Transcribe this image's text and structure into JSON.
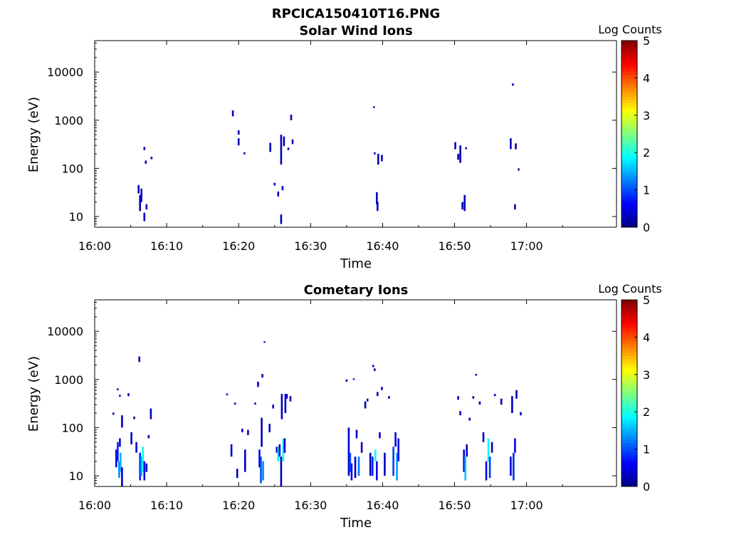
{
  "figure": {
    "title": "RPCICA150410T16.PNG"
  },
  "chart_data": [
    {
      "type": "heatmap",
      "title": "Solar Wind Ions",
      "xlabel": "Time",
      "ylabel": "Energy (eV)",
      "x_unit": "minutes after 16:00",
      "xlim": [
        0,
        72.5
      ],
      "xticks": [
        0,
        10,
        20,
        30,
        40,
        50,
        60
      ],
      "xtick_labels": [
        "16:00",
        "16:10",
        "16:20",
        "16:30",
        "16:40",
        "16:50",
        "17:00"
      ],
      "y_scale": "log",
      "ylim": [
        6,
        45000
      ],
      "yticks": [
        10,
        100,
        1000,
        10000
      ],
      "ytick_labels": [
        "10",
        "100",
        "1000",
        "10000"
      ],
      "colorbar": {
        "label": "Log Counts",
        "min": 0,
        "max": 5,
        "ticks": [
          "0",
          "1",
          "2",
          "3",
          "4",
          "5"
        ],
        "colormap": "jet"
      },
      "cells_format": [
        "time_min",
        "energy_low_eV",
        "energy_high_eV",
        "log_counts"
      ],
      "cells": [
        [
          6.1,
          30,
          45,
          0.3
        ],
        [
          6.3,
          13,
          28,
          0.3
        ],
        [
          6.5,
          20,
          38,
          0.3
        ],
        [
          6.9,
          8,
          12,
          0.3
        ],
        [
          7.2,
          14,
          18,
          0.3
        ],
        [
          6.9,
          240,
          280,
          0.3
        ],
        [
          7.1,
          125,
          145,
          0.3
        ],
        [
          7.9,
          155,
          175,
          0.3
        ],
        [
          19.2,
          1200,
          1600,
          0.3
        ],
        [
          20.0,
          500,
          620,
          0.3
        ],
        [
          20.0,
          300,
          420,
          0.3
        ],
        [
          20.8,
          195,
          215,
          0.3
        ],
        [
          24.4,
          220,
          340,
          0.3
        ],
        [
          25.0,
          44,
          50,
          0.3
        ],
        [
          25.5,
          26,
          33,
          0.3
        ],
        [
          25.9,
          120,
          500,
          0.3
        ],
        [
          25.9,
          7,
          11,
          0.3
        ],
        [
          26.1,
          35,
          43,
          0.3
        ],
        [
          26.3,
          290,
          460,
          0.3
        ],
        [
          26.9,
          240,
          270,
          0.3
        ],
        [
          27.3,
          1000,
          1300,
          0.3
        ],
        [
          27.5,
          320,
          400,
          0.3
        ],
        [
          38.8,
          1800,
          1950,
          0.3
        ],
        [
          38.9,
          195,
          215,
          0.3
        ],
        [
          39.2,
          18,
          32,
          0.3
        ],
        [
          39.4,
          120,
          200,
          0.3
        ],
        [
          39.3,
          13,
          20,
          0.3
        ],
        [
          39.9,
          140,
          190,
          0.3
        ],
        [
          50.1,
          250,
          350,
          0.3
        ],
        [
          50.5,
          150,
          200,
          0.3
        ],
        [
          50.8,
          130,
          300,
          0.3
        ],
        [
          51.1,
          14,
          20,
          0.3
        ],
        [
          51.4,
          13,
          28,
          0.3
        ],
        [
          51.6,
          250,
          275,
          0.3
        ],
        [
          57.8,
          250,
          420,
          0.3
        ],
        [
          58.1,
          5200,
          5800,
          0.3
        ],
        [
          58.4,
          14,
          18,
          0.3
        ],
        [
          58.5,
          250,
          330,
          0.3
        ],
        [
          58.9,
          90,
          100,
          0.3
        ]
      ]
    },
    {
      "type": "heatmap",
      "title": "Cometary Ions",
      "xlabel": "Time",
      "ylabel": "Energy (eV)",
      "x_unit": "minutes after 16:00",
      "xlim": [
        0,
        72.5
      ],
      "xticks": [
        0,
        10,
        20,
        30,
        40,
        50,
        60
      ],
      "xtick_labels": [
        "16:00",
        "16:10",
        "16:20",
        "16:30",
        "16:40",
        "16:50",
        "17:00"
      ],
      "y_scale": "log",
      "ylim": [
        6,
        45000
      ],
      "yticks": [
        10,
        100,
        1000,
        10000
      ],
      "ytick_labels": [
        "10",
        "100",
        "1000",
        "10000"
      ],
      "colorbar": {
        "label": "Log Counts",
        "min": 0,
        "max": 5,
        "ticks": [
          "0",
          "1",
          "2",
          "3",
          "4",
          "5"
        ],
        "colormap": "jet"
      },
      "cells_format": [
        "time_min",
        "energy_low_eV",
        "energy_high_eV",
        "log_counts"
      ],
      "cells": [
        [
          2.6,
          185,
          205,
          0.3
        ],
        [
          3.0,
          15,
          35,
          0.5
        ],
        [
          3.2,
          20,
          50,
          0.8
        ],
        [
          3.4,
          9,
          20,
          1.3
        ],
        [
          3.5,
          40,
          60,
          0.4
        ],
        [
          3.6,
          12,
          30,
          1.5
        ],
        [
          3.2,
          600,
          650,
          0.3
        ],
        [
          3.5,
          440,
          480,
          0.3
        ],
        [
          3.8,
          100,
          180,
          0.3
        ],
        [
          3.8,
          6,
          15,
          0.4
        ],
        [
          4.7,
          450,
          520,
          0.3
        ],
        [
          5.1,
          45,
          80,
          0.3
        ],
        [
          5.5,
          150,
          170,
          0.3
        ],
        [
          5.8,
          30,
          50,
          0.5
        ],
        [
          6.2,
          2300,
          3000,
          0.3
        ],
        [
          6.3,
          8,
          30,
          0.8
        ],
        [
          6.5,
          10,
          25,
          1.5
        ],
        [
          6.7,
          12,
          40,
          1.9
        ],
        [
          6.9,
          8,
          20,
          0.5
        ],
        [
          7.2,
          12,
          18,
          0.3
        ],
        [
          7.5,
          60,
          70,
          0.3
        ],
        [
          7.8,
          150,
          250,
          0.3
        ],
        [
          18.4,
          470,
          510,
          0.3
        ],
        [
          19.0,
          25,
          45,
          0.3
        ],
        [
          19.5,
          300,
          330,
          0.3
        ],
        [
          19.8,
          9,
          14,
          0.3
        ],
        [
          20.5,
          80,
          95,
          0.3
        ],
        [
          20.9,
          12,
          35,
          0.3
        ],
        [
          21.3,
          70,
          90,
          0.3
        ],
        [
          22.3,
          300,
          330,
          0.3
        ],
        [
          22.7,
          700,
          900,
          0.3
        ],
        [
          22.9,
          15,
          35,
          0.5
        ],
        [
          23.1,
          7,
          25,
          1.0
        ],
        [
          23.2,
          40,
          160,
          0.3
        ],
        [
          23.4,
          8,
          20,
          1.3
        ],
        [
          23.3,
          1100,
          1300,
          0.3
        ],
        [
          23.6,
          5800,
          6200,
          0.3
        ],
        [
          24.3,
          80,
          120,
          0.3
        ],
        [
          24.8,
          250,
          300,
          0.3
        ],
        [
          25.3,
          30,
          40,
          0.3
        ],
        [
          25.5,
          20,
          40,
          1.8
        ],
        [
          25.7,
          25,
          45,
          0.5
        ],
        [
          25.9,
          6,
          25,
          0.3
        ],
        [
          26.0,
          150,
          500,
          0.3
        ],
        [
          26.2,
          20,
          60,
          1.9
        ],
        [
          26.4,
          30,
          60,
          0.3
        ],
        [
          26.5,
          200,
          500,
          0.3
        ],
        [
          26.7,
          400,
          500,
          0.3
        ],
        [
          27.2,
          350,
          450,
          0.3
        ],
        [
          35.0,
          900,
          1000,
          0.3
        ],
        [
          35.3,
          10,
          100,
          0.4
        ],
        [
          35.5,
          12,
          30,
          1.0
        ],
        [
          35.7,
          8,
          18,
          0.5
        ],
        [
          36.0,
          1000,
          1050,
          0.3
        ],
        [
          36.2,
          9,
          25,
          0.3
        ],
        [
          36.4,
          60,
          90,
          0.3
        ],
        [
          36.7,
          10,
          25,
          1.2
        ],
        [
          37.1,
          30,
          50,
          0.3
        ],
        [
          37.6,
          250,
          350,
          0.3
        ],
        [
          37.9,
          350,
          400,
          0.3
        ],
        [
          38.3,
          10,
          30,
          0.3
        ],
        [
          38.6,
          10,
          25,
          0.8
        ],
        [
          38.7,
          1800,
          2000,
          0.3
        ],
        [
          38.9,
          1500,
          1700,
          0.3
        ],
        [
          39.0,
          20,
          35,
          1.9
        ],
        [
          39.2,
          8,
          20,
          0.6
        ],
        [
          39.3,
          450,
          550,
          0.3
        ],
        [
          39.6,
          60,
          80,
          0.3
        ],
        [
          39.9,
          600,
          700,
          0.3
        ],
        [
          40.3,
          10,
          30,
          0.3
        ],
        [
          40.9,
          400,
          450,
          0.3
        ],
        [
          41.5,
          10,
          40,
          0.9
        ],
        [
          41.8,
          40,
          80,
          0.4
        ],
        [
          42.0,
          8,
          30,
          1.4
        ],
        [
          42.2,
          20,
          60,
          0.5
        ],
        [
          50.5,
          380,
          450,
          0.3
        ],
        [
          50.8,
          180,
          220,
          0.3
        ],
        [
          51.3,
          12,
          35,
          0.5
        ],
        [
          51.5,
          8,
          25,
          1.6
        ],
        [
          51.7,
          25,
          45,
          0.3
        ],
        [
          52.1,
          140,
          160,
          0.3
        ],
        [
          52.6,
          400,
          450,
          0.3
        ],
        [
          53.0,
          1200,
          1300,
          0.3
        ],
        [
          53.5,
          300,
          350,
          0.3
        ],
        [
          54.0,
          50,
          80,
          0.3
        ],
        [
          54.4,
          8,
          20,
          0.6
        ],
        [
          54.7,
          20,
          60,
          1.9
        ],
        [
          54.9,
          9,
          25,
          0.9
        ],
        [
          55.2,
          30,
          50,
          0.3
        ],
        [
          55.6,
          450,
          500,
          0.3
        ],
        [
          56.5,
          300,
          400,
          0.3
        ],
        [
          57.8,
          10,
          25,
          0.4
        ],
        [
          58.0,
          200,
          450,
          0.3
        ],
        [
          58.2,
          8,
          30,
          0.8
        ],
        [
          58.4,
          30,
          60,
          0.6
        ],
        [
          58.6,
          400,
          600,
          0.3
        ],
        [
          59.2,
          180,
          210,
          0.3
        ]
      ]
    }
  ]
}
